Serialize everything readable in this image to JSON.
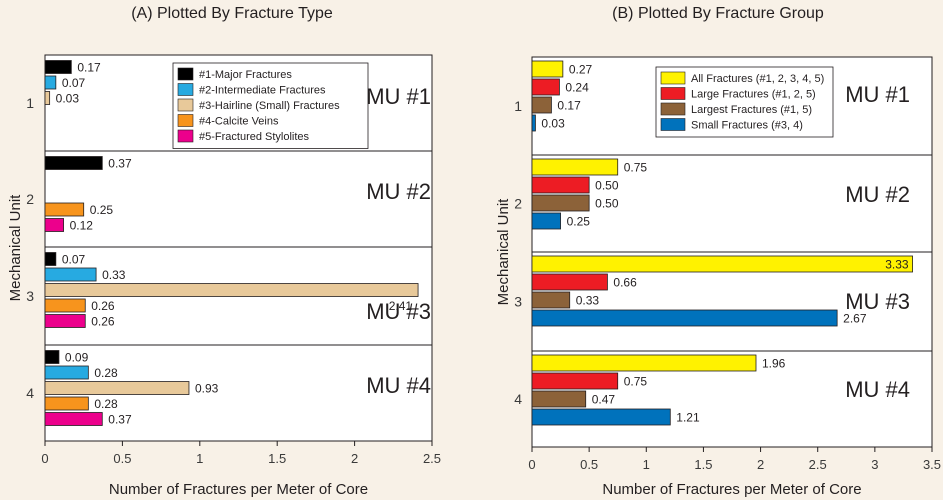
{
  "chart_data": [
    {
      "type": "bar",
      "orientation": "horizontal",
      "title": "(A) Plotted By Fracture Type",
      "xlabel": "Number of Fractures per Meter of Core",
      "ylabel": "Mechanical Unit",
      "xlim": [
        0,
        2.5
      ],
      "xticks": [
        0,
        0.5,
        1,
        1.5,
        2,
        2.5
      ],
      "xtick_labels": [
        "0",
        "0.5",
        "1",
        "1.5",
        "2",
        "2.5"
      ],
      "legend_position": "top-right (inside MU #1 panel)",
      "series": [
        {
          "name": "#1-Major Fractures",
          "color": "#000000"
        },
        {
          "name": "#2-Intermediate Fractures",
          "color": "#27aae1"
        },
        {
          "name": "#3-Hairline (Small) Fractures",
          "color": "#e8c99a"
        },
        {
          "name": "#4-Calcite Veins",
          "color": "#f7941d"
        },
        {
          "name": "#5-Fractured Stylolites",
          "color": "#ec008c"
        }
      ],
      "units": [
        {
          "unit": "1",
          "label": "MU #1",
          "bars": [
            {
              "series": 0,
              "slot": 0,
              "value": 0.17,
              "label": "0.17"
            },
            {
              "series": 1,
              "slot": 1,
              "value": 0.07,
              "label": "0.07"
            },
            {
              "series": 2,
              "slot": 2,
              "value": 0.03,
              "label": "0.03"
            }
          ]
        },
        {
          "unit": "2",
          "label": "MU #2",
          "bars": [
            {
              "series": 0,
              "slot": 0,
              "value": 0.37,
              "label": "0.37"
            },
            {
              "series": 3,
              "slot": 3,
              "value": 0.25,
              "label": "0.25"
            },
            {
              "series": 4,
              "slot": 4,
              "value": 0.12,
              "label": "0.12"
            }
          ]
        },
        {
          "unit": "3",
          "label": "MU #3",
          "bars": [
            {
              "series": 0,
              "slot": 0,
              "value": 0.07,
              "label": "0.07"
            },
            {
              "series": 1,
              "slot": 1,
              "value": 0.33,
              "label": "0.33"
            },
            {
              "series": 2,
              "slot": 2,
              "value": 2.41,
              "label": "2.41",
              "label_below": true
            },
            {
              "series": 3,
              "slot": 3,
              "value": 0.26,
              "label": "0.26"
            },
            {
              "series": 4,
              "slot": 4,
              "value": 0.26,
              "label": "0.26"
            }
          ]
        },
        {
          "unit": "4",
          "label": "MU #4",
          "bars": [
            {
              "series": 0,
              "slot": 0,
              "value": 0.09,
              "label": "0.09"
            },
            {
              "series": 1,
              "slot": 1,
              "value": 0.28,
              "label": "0.28"
            },
            {
              "series": 2,
              "slot": 2,
              "value": 0.93,
              "label": "0.93"
            },
            {
              "series": 3,
              "slot": 3,
              "value": 0.28,
              "label": "0.28"
            },
            {
              "series": 4,
              "slot": 4,
              "value": 0.37,
              "label": "0.37"
            }
          ]
        }
      ]
    },
    {
      "type": "bar",
      "orientation": "horizontal",
      "title": "(B) Plotted By Fracture Group",
      "xlabel": "Number of Fractures per Meter of Core",
      "ylabel": "Mechanical Unit",
      "xlim": [
        0,
        3.5
      ],
      "xticks": [
        0,
        0.5,
        1,
        1.5,
        2,
        2.5,
        3,
        3.5
      ],
      "xtick_labels": [
        "0",
        "0.5",
        "1",
        "1.5",
        "2",
        "2.5",
        "3",
        "3.5"
      ],
      "legend_position": "top-right (inside MU #1 panel)",
      "series": [
        {
          "name": "All Fractures (#1, 2, 3, 4, 5)",
          "color": "#fff200"
        },
        {
          "name": "Large Fractures (#1, 2, 5)",
          "color": "#ed1c24"
        },
        {
          "name": "Largest Fractures (#1, 5)",
          "color": "#8c6239"
        },
        {
          "name": "Small Fractures (#3, 4)",
          "color": "#0072bc"
        }
      ],
      "units": [
        {
          "unit": "1",
          "label": "MU #1",
          "bars": [
            {
              "series": 0,
              "slot": 0,
              "value": 0.27,
              "label": "0.27"
            },
            {
              "series": 1,
              "slot": 1,
              "value": 0.24,
              "label": "0.24"
            },
            {
              "series": 2,
              "slot": 2,
              "value": 0.17,
              "label": "0.17"
            },
            {
              "series": 3,
              "slot": 3,
              "value": 0.03,
              "label": "0.03"
            }
          ]
        },
        {
          "unit": "2",
          "label": "MU #2",
          "bars": [
            {
              "series": 0,
              "slot": 0,
              "value": 0.75,
              "label": "0.75"
            },
            {
              "series": 1,
              "slot": 1,
              "value": 0.5,
              "label": "0.50"
            },
            {
              "series": 2,
              "slot": 2,
              "value": 0.5,
              "label": "0.50"
            },
            {
              "series": 3,
              "slot": 3,
              "value": 0.25,
              "label": "0.25"
            }
          ]
        },
        {
          "unit": "3",
          "label": "MU #3",
          "bars": [
            {
              "series": 0,
              "slot": 0,
              "value": 3.33,
              "label": "3.33",
              "label_inside": true
            },
            {
              "series": 1,
              "slot": 1,
              "value": 0.66,
              "label": "0.66"
            },
            {
              "series": 2,
              "slot": 2,
              "value": 0.33,
              "label": "0.33"
            },
            {
              "series": 3,
              "slot": 3,
              "value": 2.67,
              "label": "2.67"
            }
          ]
        },
        {
          "unit": "4",
          "label": "MU #4",
          "bars": [
            {
              "series": 0,
              "slot": 0,
              "value": 1.96,
              "label": "1.96"
            },
            {
              "series": 1,
              "slot": 1,
              "value": 0.75,
              "label": "0.75"
            },
            {
              "series": 2,
              "slot": 2,
              "value": 0.47,
              "label": "0.47"
            },
            {
              "series": 3,
              "slot": 3,
              "value": 1.21,
              "label": "1.21"
            }
          ]
        }
      ]
    }
  ]
}
